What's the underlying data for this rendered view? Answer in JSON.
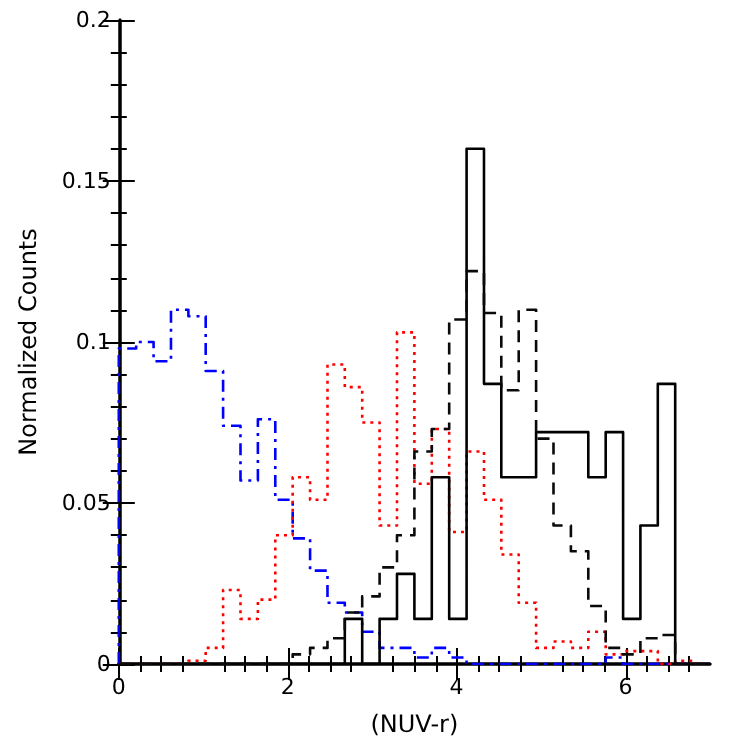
{
  "chart_data": {
    "type": "histogram",
    "xlabel": "(NUV-r)",
    "ylabel": "Normalized Counts",
    "bins": [
      0,
      0.206,
      0.412,
      0.618,
      0.824,
      1.029,
      1.235,
      1.441,
      1.647,
      1.853,
      2.059,
      2.265,
      2.471,
      2.676,
      2.882,
      3.088,
      3.294,
      3.5,
      3.706,
      3.912,
      4.118,
      4.324,
      4.529,
      4.735,
      4.941,
      5.147,
      5.353,
      5.559,
      5.765,
      5.971,
      6.176,
      6.382,
      6.588,
      6.794,
      7.0
    ],
    "series": [
      {
        "color": "#0000ff",
        "line_style": "dashdot",
        "values": [
          0.098,
          0.1,
          0.094,
          0.11,
          0.108,
          0.091,
          0.074,
          0.057,
          0.076,
          0.051,
          0.039,
          0.029,
          0.019,
          0.016,
          0.01,
          0.005,
          0.005,
          0.002,
          0.005,
          0.002,
          0,
          0,
          0,
          0,
          0,
          0,
          0,
          0,
          0.002,
          0,
          0,
          0,
          0,
          0
        ]
      },
      {
        "color": "#ff0000",
        "line_style": "dotted",
        "values": [
          0,
          0,
          0,
          0,
          0.001,
          0.005,
          0.023,
          0.014,
          0.02,
          0.04,
          0.058,
          0.051,
          0.093,
          0.086,
          0.075,
          0.043,
          0.103,
          0.056,
          0.073,
          0.041,
          0.066,
          0.051,
          0.034,
          0.019,
          0.005,
          0.007,
          0.005,
          0.01,
          0.003,
          0.004,
          0.004,
          0,
          0.001,
          0
        ]
      },
      {
        "color": "#000000",
        "line_style": "solid",
        "values": [
          0,
          0,
          0,
          0,
          0,
          0,
          0,
          0,
          0,
          0,
          0,
          0,
          0,
          0.014,
          0,
          0.014,
          0.028,
          0.014,
          0.058,
          0.014,
          0.16,
          0.087,
          0.058,
          0.058,
          0.072,
          0.072,
          0.072,
          0.058,
          0.072,
          0.014,
          0.043,
          0.087,
          0,
          0
        ]
      },
      {
        "color": "#0a0a0a",
        "line_style": "dashed",
        "values": [
          0,
          0,
          0,
          0,
          0,
          0,
          0,
          0,
          0,
          0,
          0.003,
          0.005,
          0.008,
          0.016,
          0.021,
          0.03,
          0.04,
          0.066,
          0.073,
          0.107,
          0.122,
          0.109,
          0.085,
          0.11,
          0.07,
          0.043,
          0.035,
          0.018,
          0.005,
          0.003,
          0.008,
          0.009,
          0,
          0
        ]
      }
    ],
    "xlim": [
      0,
      7
    ],
    "xticks": [
      0,
      2,
      4,
      6
    ],
    "ylim": [
      0,
      0.2
    ],
    "yticks": [
      0,
      0.05,
      0.1,
      0.15,
      0.2
    ],
    "grid": false
  }
}
